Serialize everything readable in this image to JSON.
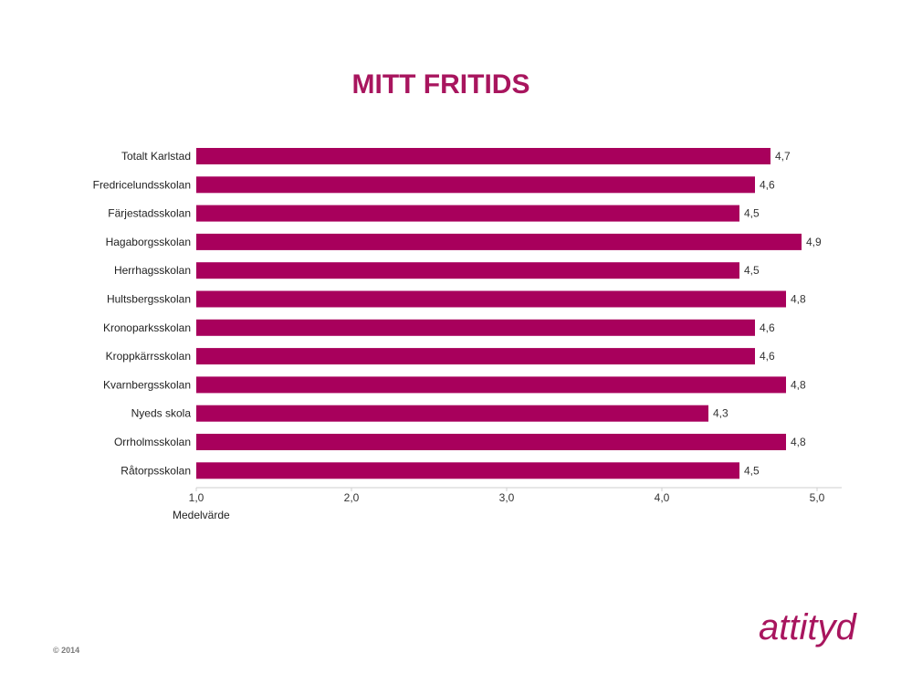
{
  "header": {
    "title": "MITT FRITIDS"
  },
  "chart_data": {
    "type": "bar",
    "orientation": "horizontal",
    "title": "MITT FRITIDS",
    "xlabel": "Medelvärde",
    "ylabel": "",
    "xlim": [
      1.0,
      5.0
    ],
    "x_ticks": [
      "1,0",
      "2,0",
      "3,0",
      "4,0",
      "5,0"
    ],
    "grid": false,
    "categories": [
      "Totalt Karlstad",
      "Fredricelundsskolan",
      "Färjestadsskolan",
      "Hagaborgsskolan",
      "Herrhagsskolan",
      "Hultsbergsskolan",
      "Kronoparksskolan",
      "Kroppkärrsskolan",
      "Kvarnbergsskolan",
      "Nyeds skola",
      "Orrholmsskolan",
      "Råtorpsskolan"
    ],
    "values": [
      4.7,
      4.6,
      4.5,
      4.9,
      4.5,
      4.8,
      4.6,
      4.6,
      4.8,
      4.3,
      4.8,
      4.5
    ],
    "value_labels": [
      "4,7",
      "4,6",
      "4,5",
      "4,9",
      "4,5",
      "4,8",
      "4,6",
      "4,6",
      "4,8",
      "4,3",
      "4,8",
      "4,5"
    ],
    "bar_color": "#a8005c"
  },
  "footer": {
    "copyright": "© 2014",
    "logo_text": "attityd",
    "logo_color": "#a8155e"
  }
}
